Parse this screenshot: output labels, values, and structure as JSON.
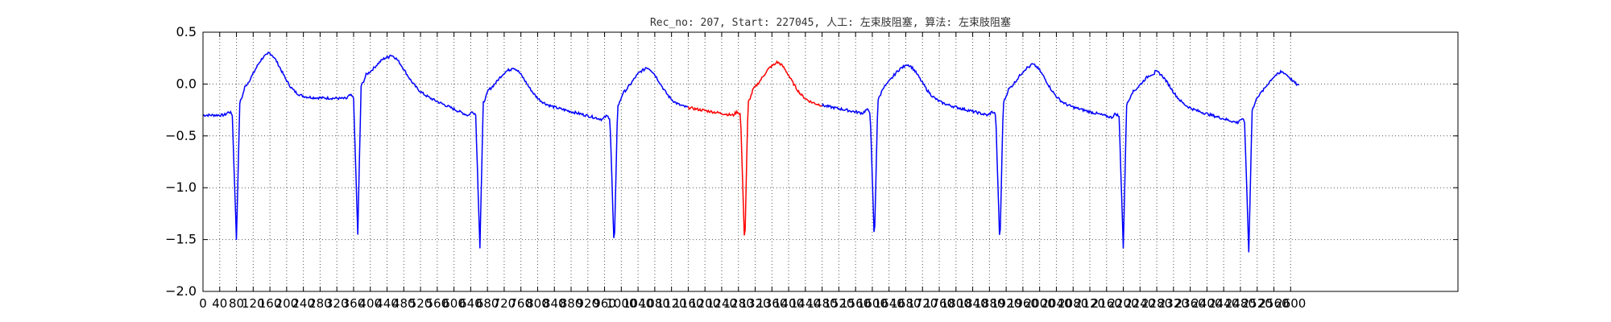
{
  "chart_data": {
    "type": "line",
    "title": "Rec_no: 207, Start: 227045, 人工: 左束肢阻塞, 算法: 左束肢阻塞",
    "xlabel": "",
    "ylabel": "",
    "xlim": [
      0,
      3000
    ],
    "ylim": [
      -2.0,
      0.5
    ],
    "grid": true,
    "grid_style": "dotted",
    "yticks": [
      "0.5",
      "0.0",
      "−0.5",
      "−1.0",
      "−1.5",
      "−2.0"
    ],
    "ytick_values": [
      0.5,
      0.0,
      -0.5,
      -1.0,
      -1.5,
      -2.0
    ],
    "xticks": [
      "0",
      "40",
      "80",
      "120",
      "160",
      "200",
      "240",
      "280",
      "320",
      "360",
      "400",
      "440",
      "480",
      "520",
      "560",
      "600",
      "640",
      "680",
      "720",
      "760",
      "800",
      "840",
      "880",
      "920",
      "960",
      "1000",
      "1040",
      "1080",
      "1120",
      "1160",
      "1200",
      "1240",
      "1280",
      "1320",
      "1360",
      "1400",
      "1440",
      "1480",
      "1520",
      "1560",
      "1600",
      "1640",
      "1680",
      "1720",
      "1760",
      "1800",
      "1840",
      "1880",
      "1920",
      "1960",
      "2000",
      "2040",
      "2080",
      "2120",
      "2160",
      "2200",
      "2240",
      "2280",
      "2320",
      "2360",
      "2400",
      "2440",
      "2480",
      "2520",
      "2560",
      "2600"
    ],
    "xtick_values": [
      0,
      40,
      80,
      120,
      160,
      200,
      240,
      280,
      320,
      360,
      400,
      440,
      480,
      520,
      560,
      600,
      640,
      680,
      720,
      760,
      800,
      840,
      880,
      920,
      960,
      1000,
      1040,
      1080,
      1120,
      1160,
      1200,
      1240,
      1280,
      1320,
      1360,
      1400,
      1440,
      1480,
      1520,
      1560,
      1600,
      1640,
      1680,
      1720,
      1760,
      1800,
      1840,
      1880,
      1920,
      1960,
      2000,
      2040,
      2080,
      2120,
      2160,
      2200,
      2240,
      2280,
      2320,
      2360,
      2400,
      2440,
      2480,
      2520,
      2560,
      2600
    ],
    "beats": [
      {
        "x": 80,
        "min": -1.5,
        "t_peak": 0.3,
        "baseline": -0.3,
        "end_level": -0.14
      },
      {
        "x": 370,
        "min": -1.45,
        "t_peak": 0.28,
        "baseline": -0.14,
        "end_level": -0.3
      },
      {
        "x": 662,
        "min": -1.58,
        "t_peak": 0.16,
        "baseline": -0.3,
        "end_level": -0.34
      },
      {
        "x": 983,
        "min": -1.62,
        "t_peak": 0.16,
        "baseline": -0.34,
        "end_level": -0.3
      },
      {
        "x": 1295,
        "min": -1.58,
        "t_peak": 0.21,
        "baseline": -0.3,
        "end_level": -0.28
      },
      {
        "x": 1605,
        "min": -1.55,
        "t_peak": 0.19,
        "baseline": -0.28,
        "end_level": -0.3
      },
      {
        "x": 1905,
        "min": -1.58,
        "t_peak": 0.19,
        "baseline": -0.3,
        "end_level": -0.32
      },
      {
        "x": 2200,
        "min": -1.58,
        "t_peak": 0.12,
        "baseline": -0.32,
        "end_level": -0.37
      },
      {
        "x": 2500,
        "min": -1.62,
        "t_peak": 0.12,
        "baseline": -0.37,
        "end_level": -0.08
      }
    ],
    "x_end": 2620,
    "series": [
      {
        "color": "#0000ff"
      },
      {
        "color": "#ff0000",
        "x_range": [
          1160,
          1480
        ]
      }
    ]
  }
}
